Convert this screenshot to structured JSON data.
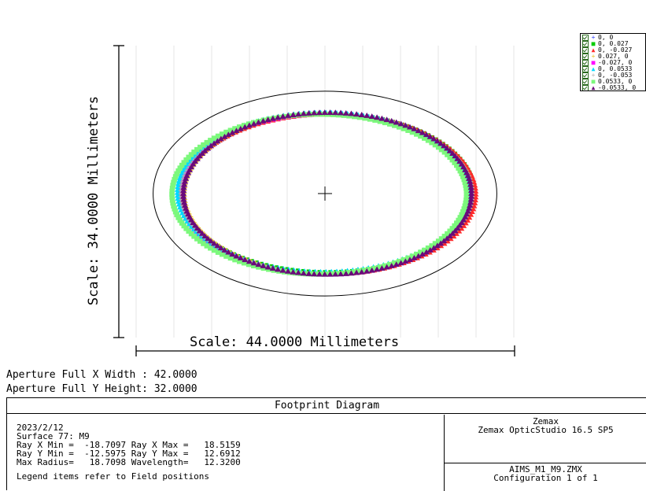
{
  "chart_data": {
    "type": "scatter",
    "subtype": "footprint",
    "scale_y": "Scale: 34.0000 Millimeters",
    "scale_x": "Scale: 44.0000 Millimeters",
    "x_range_mm": [
      -22,
      22
    ],
    "y_range_mm": [
      -17,
      17
    ],
    "aperture": {
      "x_half": 21.0,
      "y_half": 16.0
    },
    "series": [
      {
        "name": "0, 0",
        "marker": "plus",
        "color": "#3040ff",
        "rx": 17.9,
        "ry": 12.6,
        "cx": 0.2,
        "cy": 0.0
      },
      {
        "name": "0, 0.027",
        "marker": "square",
        "color": "#00cc00",
        "rx": 18.0,
        "ry": 12.4,
        "cx": 0.3,
        "cy": 0.15
      },
      {
        "name": "0, -0.027",
        "marker": "triangle",
        "color": "#ff2a2a",
        "rx": 18.0,
        "ry": 12.5,
        "cx": 0.4,
        "cy": -0.1
      },
      {
        "name": "0.027, 0",
        "marker": "plus",
        "color": "#e8c020",
        "rx": 17.6,
        "ry": 12.5,
        "cx": 0.5,
        "cy": 0.0
      },
      {
        "name": "-0.027, 0",
        "marker": "square",
        "color": "#ff00ff",
        "rx": 17.7,
        "ry": 12.5,
        "cx": -0.1,
        "cy": -0.2
      },
      {
        "name": "0, 0.0533",
        "marker": "triangle",
        "color": "#00d8ff",
        "rx": 17.8,
        "ry": 12.45,
        "cx": -0.2,
        "cy": 0.15
      },
      {
        "name": "0, -0.053",
        "marker": "plus",
        "color": "#b0b0b0",
        "rx": 17.9,
        "ry": 12.5,
        "cx": 0.2,
        "cy": 0.0
      },
      {
        "name": "0.0533, 0",
        "marker": "square",
        "color": "#7cf87c",
        "rx": 18.0,
        "ry": 12.5,
        "cx": -0.7,
        "cy": -0.1
      },
      {
        "name": "-0.0533, 0",
        "marker": "triangle",
        "color": "#6a0a7a",
        "rx": 17.6,
        "ry": 12.65,
        "cx": 0.3,
        "cy": 0.0
      }
    ]
  },
  "aperture_x": "Aperture Full X Width : 42.0000",
  "aperture_y": "Aperture Full Y Height: 32.0000",
  "panel": {
    "title": "Footprint Diagram",
    "date": "2023/2/12",
    "surface": "Surface 77: M9",
    "line_x": "Ray X Min =  -18.7097 Ray X Max =   18.5159",
    "line_y": "Ray Y Min =  -12.5975 Ray Y Max =   12.6912",
    "line_r": "Max Radius=   18.7098 Wavelength=   12.3200",
    "note": "Legend items refer to Field positions",
    "company": "Zemax",
    "product": "Zemax OpticStudio 16.5 SP5",
    "file": "AIMS_M1_M9.ZMX",
    "config": "Configuration 1 of 1"
  }
}
